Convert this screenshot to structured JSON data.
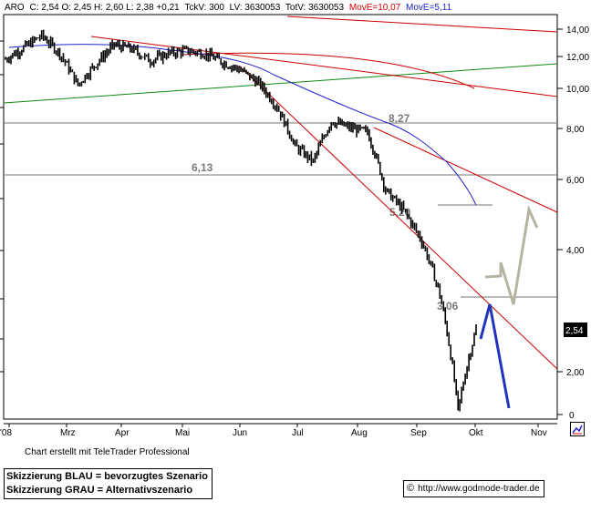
{
  "header": {
    "symbol_prefix": "ARO",
    "ohlc": "C: 2,54 O: 2,45 H: 2,60 L: 2,38 +0,21",
    "tckv": "TckV: 300",
    "lv": "LV: 3630053",
    "totv": "TotV: 3630053",
    "move_10": "MovE=10,07",
    "move_5": "MovE=5,11"
  },
  "colors": {
    "price": "#000000",
    "move_10": "#cc0000",
    "move_5": "#2222cc",
    "trend_red": "#cc0000",
    "trend_green": "#118811",
    "support_gray": "#777777",
    "scenario_blue": "#2233bb",
    "scenario_gray": "#b4b4a0",
    "label_gray": "#7a7a7a"
  },
  "chart_data": {
    "type": "candlestick",
    "x_ticks": [
      "'08",
      "Mrz",
      "Apr",
      "Mai",
      "Jun",
      "Jul",
      "Aug",
      "Sep",
      "Okt",
      "Nov"
    ],
    "y_ticks": [
      "14,00",
      "12,00",
      "10,00",
      "8,00",
      "6,00",
      "4,00",
      "2,00",
      "0"
    ],
    "y_scale": "log",
    "last_price_label": "2,54",
    "levels": [
      {
        "label": "8,27",
        "value": 8.27
      },
      {
        "label": "6,13",
        "value": 6.13
      },
      {
        "label": "5,20",
        "value": 5.2
      },
      {
        "label": "3,06",
        "value": 3.06
      }
    ],
    "series": [
      {
        "name": "ARO",
        "type": "price",
        "close_approx": [
          11.8,
          12.6,
          13.5,
          12.2,
          10.2,
          11.5,
          12.8,
          12.5,
          11.7,
          12.2,
          12.4,
          12.2,
          11.6,
          11.1,
          10.3,
          9.0,
          7.2,
          6.6,
          8.3,
          8.0,
          7.8,
          5.6,
          5.0,
          4.2,
          3.1,
          1.6,
          2.54
        ]
      },
      {
        "name": "MovE=10,07",
        "type": "moving-average"
      },
      {
        "name": "MovE=5,11",
        "type": "moving-average"
      }
    ],
    "scenarios": [
      {
        "label": "Skizzierung BLAU = bevorzugtes Szenario",
        "color": "blue"
      },
      {
        "label": "Skizzierung GRAU = Alternativszenario",
        "color": "gray"
      }
    ]
  },
  "footer": {
    "credit": "Chart erstellt mit TeleTrader Professional",
    "legend_blue": "Skizzierung BLAU = bevorzugtes Szenario",
    "legend_gray": "Skizzierung GRAU = Alternativszenario",
    "url": "http://www.godmode-trader.de",
    "copyright_symbol": "©"
  }
}
